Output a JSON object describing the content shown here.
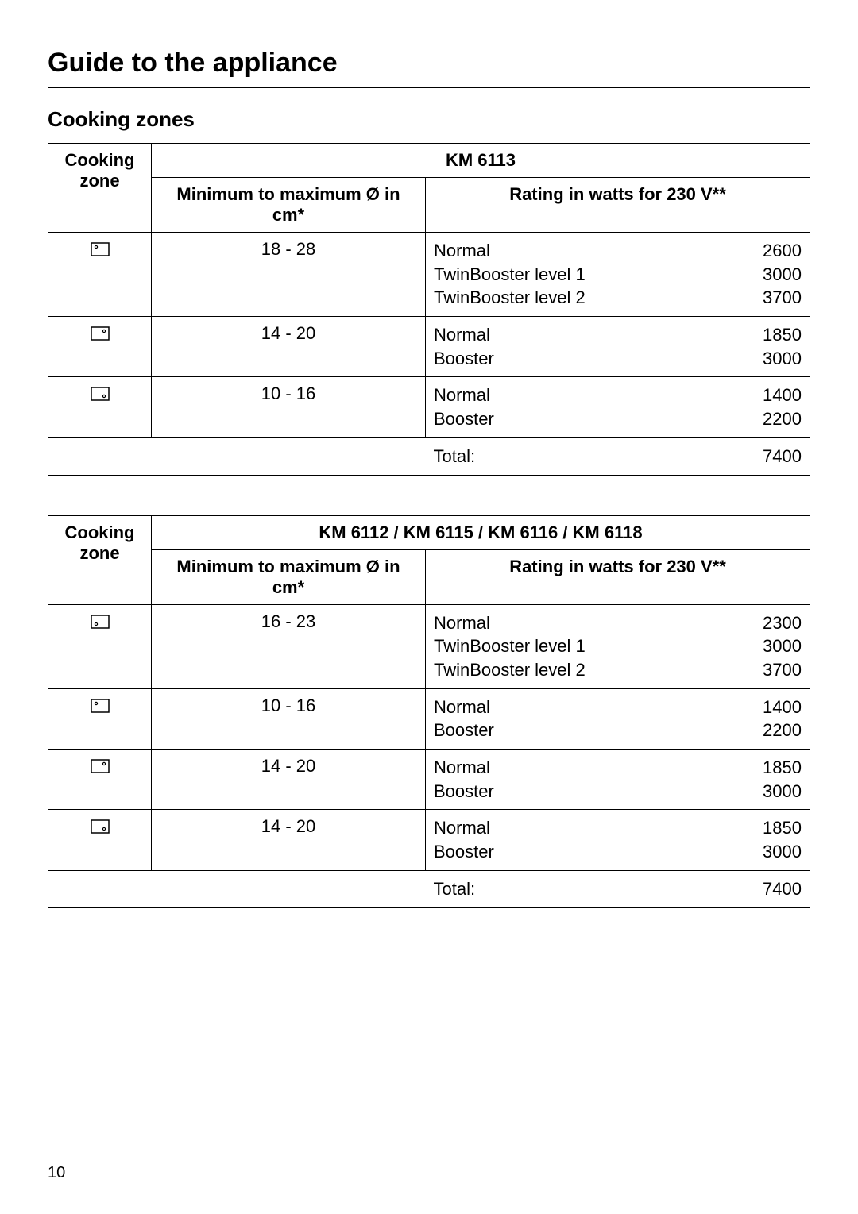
{
  "page": {
    "title": "Guide to the appliance",
    "section_title": "Cooking zones",
    "page_number": "10"
  },
  "headers": {
    "cooking_zone": "Cooking zone",
    "min_max": "Minimum to maximum Ø in cm*",
    "rating": "Rating in watts for 230 V**",
    "total": "Total:"
  },
  "labels": {
    "normal": "Normal",
    "booster": "Booster",
    "twin1": "TwinBooster level 1",
    "twin2": "TwinBooster level 2"
  },
  "table1": {
    "model_header": "KM 6113",
    "rows": [
      {
        "icon": "top-left",
        "size": "18 - 28",
        "ratings": [
          {
            "label": "normal",
            "value": "2600"
          },
          {
            "label": "twin1",
            "value": "3000"
          },
          {
            "label": "twin2",
            "value": "3700"
          }
        ]
      },
      {
        "icon": "top-right",
        "size": "14 - 20",
        "ratings": [
          {
            "label": "normal",
            "value": "1850"
          },
          {
            "label": "booster",
            "value": "3000"
          }
        ]
      },
      {
        "icon": "bottom-right",
        "size": "10 - 16",
        "ratings": [
          {
            "label": "normal",
            "value": "1400"
          },
          {
            "label": "booster",
            "value": "2200"
          }
        ]
      }
    ],
    "total": "7400"
  },
  "table2": {
    "model_header": "KM 6112 / KM 6115 / KM 6116 / KM 6118",
    "rows": [
      {
        "icon": "bottom-left",
        "size": "16 - 23",
        "ratings": [
          {
            "label": "normal",
            "value": "2300"
          },
          {
            "label": "twin1",
            "value": "3000"
          },
          {
            "label": "twin2",
            "value": "3700"
          }
        ]
      },
      {
        "icon": "top-left",
        "size": "10 - 16",
        "ratings": [
          {
            "label": "normal",
            "value": "1400"
          },
          {
            "label": "booster",
            "value": "2200"
          }
        ]
      },
      {
        "icon": "top-right",
        "size": "14 - 20",
        "ratings": [
          {
            "label": "normal",
            "value": "1850"
          },
          {
            "label": "booster",
            "value": "3000"
          }
        ]
      },
      {
        "icon": "bottom-right",
        "size": "14 - 20",
        "ratings": [
          {
            "label": "normal",
            "value": "1850"
          },
          {
            "label": "booster",
            "value": "3000"
          }
        ]
      }
    ],
    "total": "7400"
  },
  "style": {
    "background_color": "#ffffff",
    "text_color": "#000000",
    "border_color": "#000000",
    "title_fontsize": 34,
    "section_fontsize": 26,
    "header_fontsize": 22,
    "cell_fontsize": 22,
    "font_family": "Arial, Helvetica, sans-serif"
  }
}
